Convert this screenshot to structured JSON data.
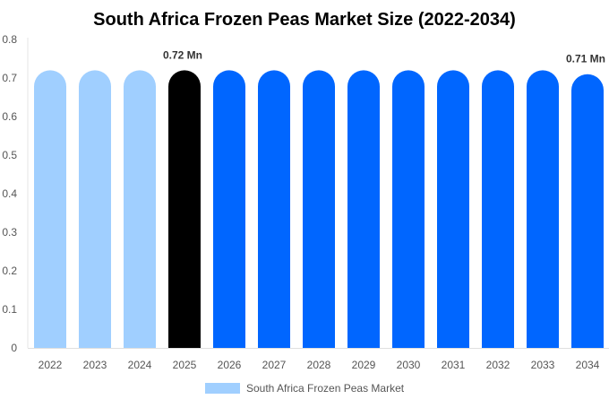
{
  "chart_data": {
    "type": "bar",
    "title": "South Africa Frozen Peas Market Size (2022-2034)",
    "xlabel": "",
    "ylabel": "",
    "categories": [
      "2022",
      "2023",
      "2024",
      "2025",
      "2026",
      "2027",
      "2028",
      "2029",
      "2030",
      "2031",
      "2032",
      "2033",
      "2034"
    ],
    "series": [
      {
        "name": "South Africa Frozen Peas Market",
        "values": [
          0.72,
          0.72,
          0.72,
          0.72,
          0.72,
          0.72,
          0.72,
          0.72,
          0.72,
          0.72,
          0.72,
          0.72,
          0.71
        ]
      }
    ],
    "ylim": [
      0,
      0.8
    ],
    "yticks": [
      "0",
      "0.1",
      "0.2",
      "0.3",
      "0.4",
      "0.5",
      "0.6",
      "0.7",
      "0.8"
    ],
    "data_labels": [
      {
        "index": 3,
        "text": "0.72 Mn"
      },
      {
        "index": 12,
        "text": "0.71 Mn"
      }
    ],
    "bar_colors": [
      "#a0cfff",
      "#a0cfff",
      "#a0cfff",
      "#000000",
      "#0066ff",
      "#0066ff",
      "#0066ff",
      "#0066ff",
      "#0066ff",
      "#0066ff",
      "#0066ff",
      "#0066ff",
      "#0066ff"
    ],
    "legend_color": "#a0cfff",
    "legend_position": "bottom-center",
    "grid": false
  }
}
